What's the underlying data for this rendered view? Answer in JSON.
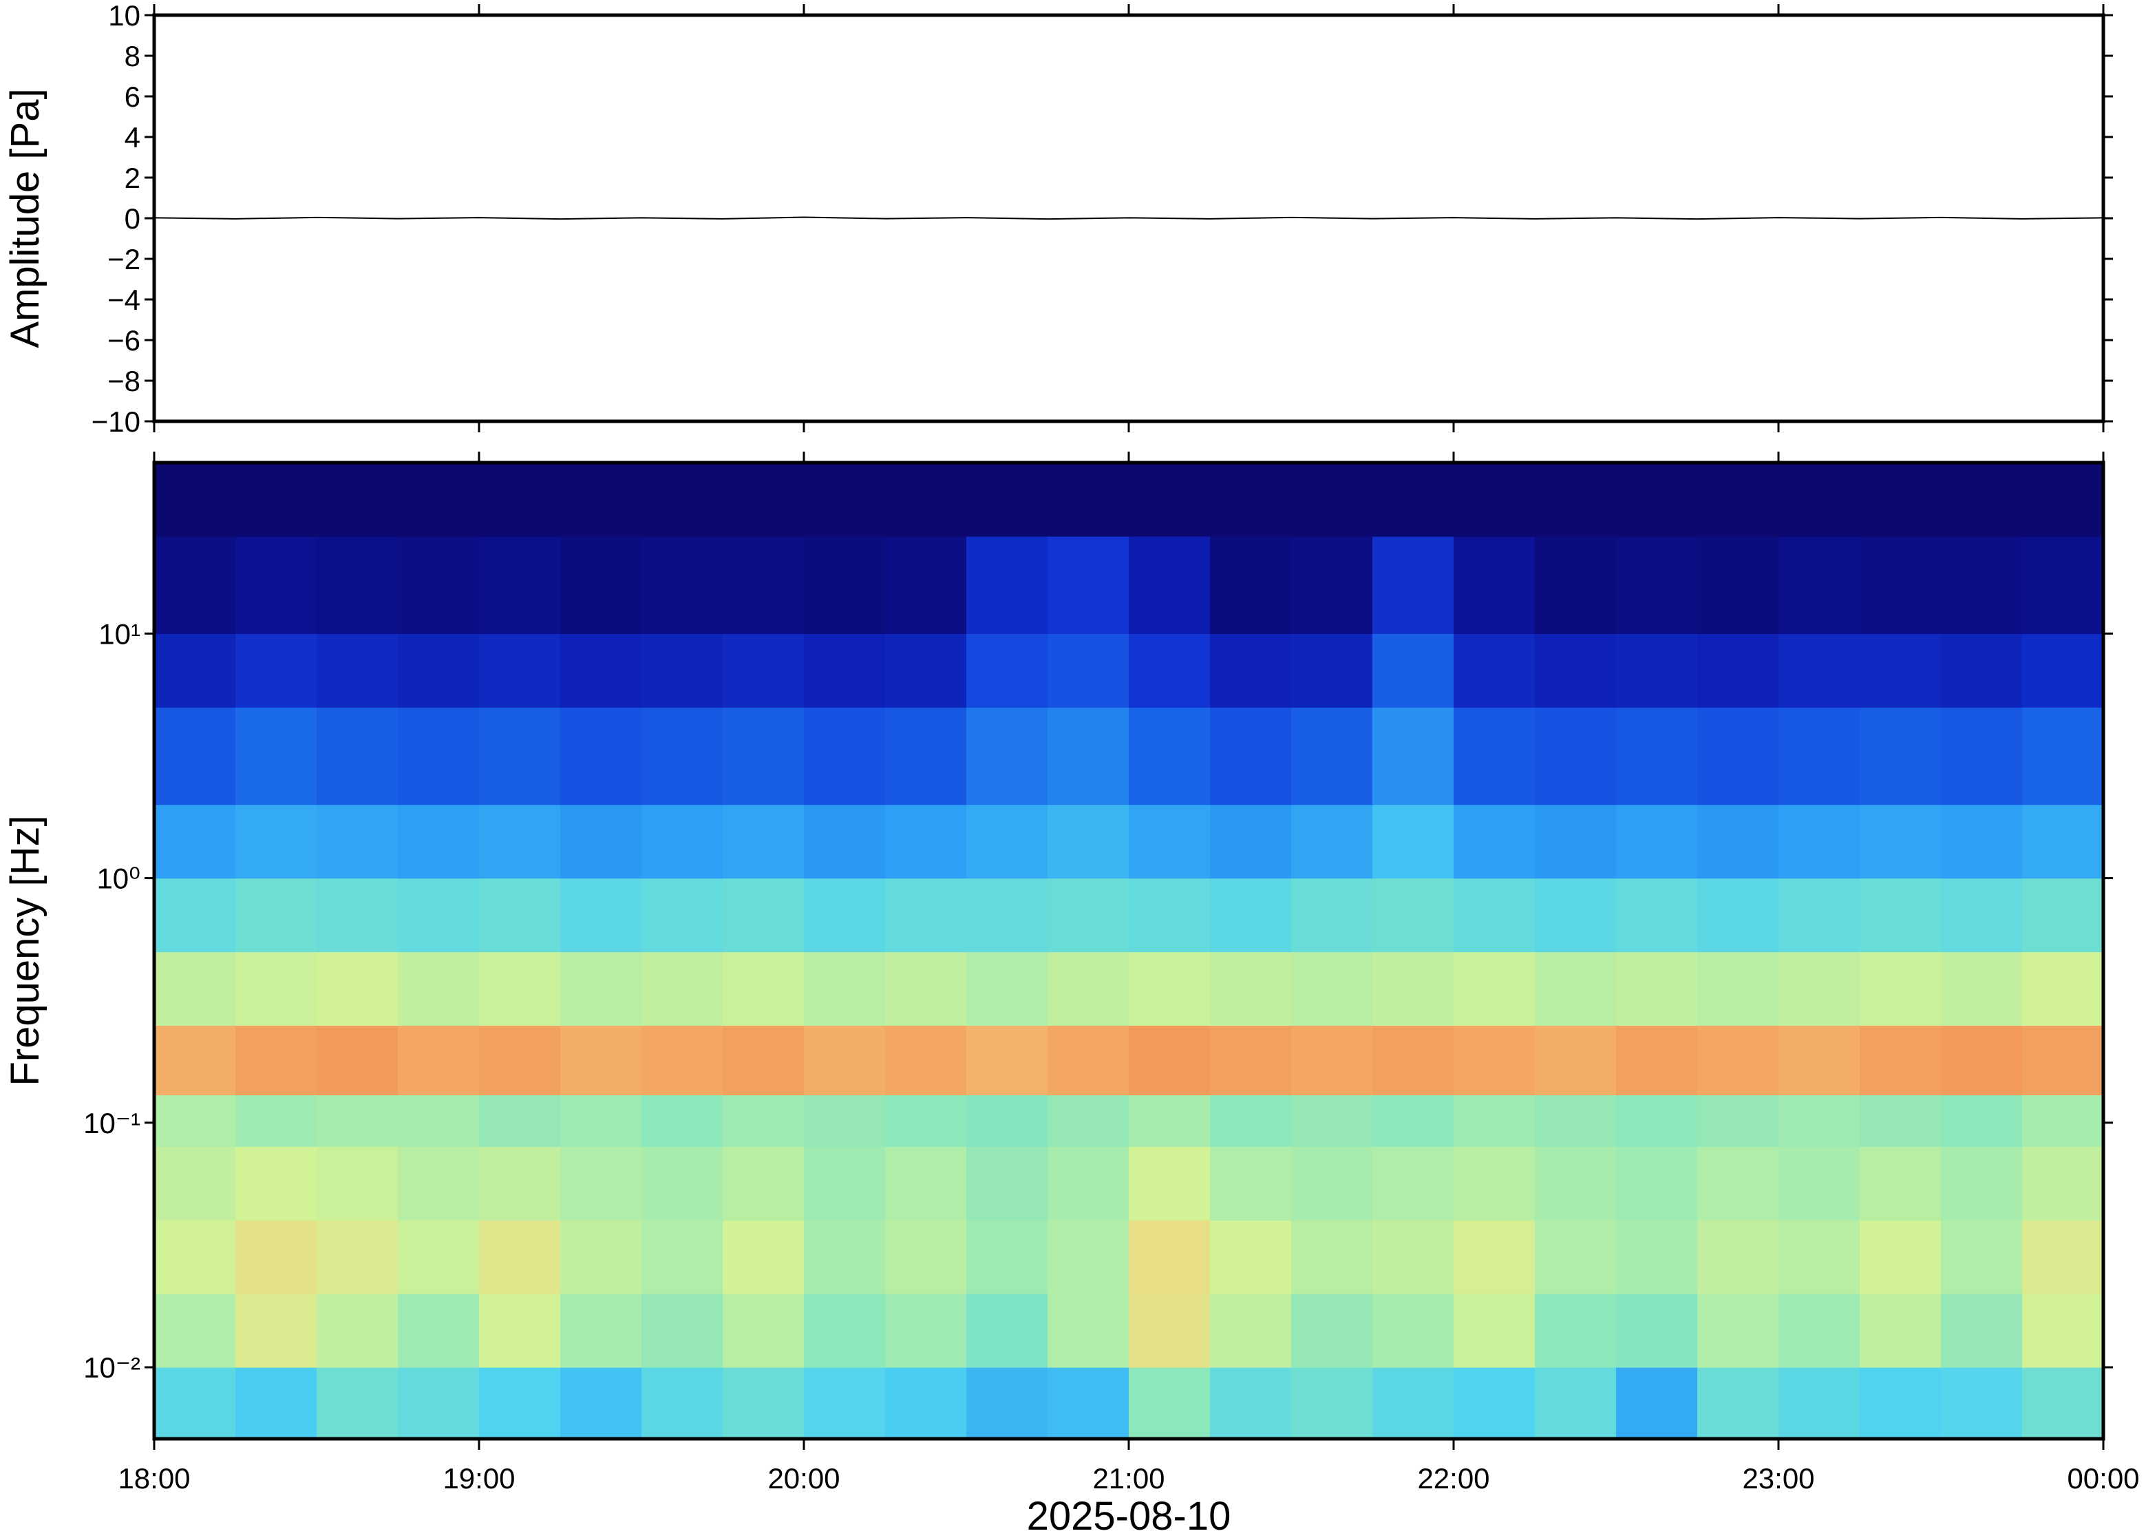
{
  "chart_data": [
    {
      "type": "line",
      "ylabel": "Amplitude [Pa]",
      "xlim": [
        18,
        24
      ],
      "xticks": [
        18,
        19,
        20,
        21,
        22,
        23,
        24
      ],
      "ylim": [
        -10,
        10
      ],
      "yticks": [
        {
          "value": 10,
          "label": "10"
        },
        {
          "value": 8,
          "label": "8"
        },
        {
          "value": 6,
          "label": "6"
        },
        {
          "value": 4,
          "label": "4"
        },
        {
          "value": 2,
          "label": "2"
        },
        {
          "value": 0,
          "label": "0"
        },
        {
          "value": -2,
          "label": "−2"
        },
        {
          "value": -4,
          "label": "−4"
        },
        {
          "value": -6,
          "label": "−6"
        },
        {
          "value": -8,
          "label": "−8"
        },
        {
          "value": -10,
          "label": "−10"
        }
      ],
      "color": "#000000",
      "x": [
        18,
        18.25,
        18.5,
        18.75,
        19,
        19.25,
        19.5,
        19.75,
        20,
        20.25,
        20.5,
        20.75,
        21,
        21.25,
        21.5,
        21.75,
        22,
        22.25,
        22.5,
        22.75,
        23,
        23.25,
        23.5,
        23.75,
        24
      ],
      "values": [
        0.02,
        -0.03,
        0.04,
        -0.02,
        0.03,
        -0.04,
        0.02,
        -0.03,
        0.05,
        -0.02,
        0.03,
        -0.04,
        0.02,
        -0.03,
        0.04,
        -0.02,
        0.03,
        -0.03,
        0.02,
        -0.04,
        0.03,
        -0.02,
        0.04,
        -0.03,
        0.02
      ]
    },
    {
      "type": "heatmap",
      "ylabel": "Frequency [Hz]",
      "xlabel": "2025-08-10",
      "xlim": [
        18,
        24
      ],
      "xticks": [
        {
          "value": 18,
          "label": "18:00"
        },
        {
          "value": 19,
          "label": "19:00"
        },
        {
          "value": 20,
          "label": "20:00"
        },
        {
          "value": 21,
          "label": "21:00"
        },
        {
          "value": 22,
          "label": "22:00"
        },
        {
          "value": 23,
          "label": "23:00"
        },
        {
          "value": 24,
          "label": "00:00"
        }
      ],
      "yscale": "log",
      "ylim": [
        0.0051,
        50
      ],
      "yticks": [
        {
          "value": 0.01,
          "label": "10⁻²"
        },
        {
          "value": 0.1,
          "label": "10⁻¹"
        },
        {
          "value": 1,
          "label": "10⁰"
        },
        {
          "value": 10,
          "label": "10¹"
        }
      ],
      "colormap": [
        "#0b0870",
        "#0c18a8",
        "#1238d8",
        "#1a68ea",
        "#2ea0f4",
        "#4cd2f2",
        "#86e6be",
        "#d2f296",
        "#f6d07a",
        "#f29a5c"
      ],
      "xbins": [
        18,
        18.25,
        18.5,
        18.75,
        19,
        19.25,
        19.5,
        19.75,
        20,
        20.25,
        20.5,
        20.75,
        21,
        21.25,
        21.5,
        21.75,
        22,
        22.25,
        22.5,
        22.75,
        23,
        23.25,
        23.5,
        23.75,
        24
      ],
      "ybins": [
        0.0051,
        0.01,
        0.02,
        0.04,
        0.08,
        0.13,
        0.25,
        0.5,
        1,
        2,
        5,
        10,
        25,
        50
      ],
      "z": [
        [
          4.5,
          4.2,
          4.8,
          4.6,
          4.3,
          4.0,
          4.5,
          4.7,
          4.4,
          4.2,
          3.8,
          3.9,
          5.2,
          4.6,
          4.8,
          4.5,
          4.3,
          4.6,
          3.6,
          4.7,
          4.5,
          4.3,
          4.4,
          4.8
        ],
        [
          5.6,
          6.2,
          5.8,
          5.4,
          6.0,
          5.5,
          5.3,
          5.7,
          5.2,
          5.4,
          5.0,
          5.6,
          6.4,
          5.8,
          5.3,
          5.5,
          5.9,
          5.2,
          5.1,
          5.6,
          5.4,
          5.8,
          5.3,
          6.0
        ],
        [
          6.0,
          6.4,
          6.2,
          5.9,
          6.3,
          5.8,
          5.6,
          6.0,
          5.5,
          5.7,
          5.4,
          5.6,
          6.5,
          6.0,
          5.7,
          5.8,
          6.1,
          5.6,
          5.5,
          5.8,
          5.7,
          6.0,
          5.6,
          6.2
        ],
        [
          5.8,
          6.0,
          5.9,
          5.7,
          5.8,
          5.6,
          5.5,
          5.7,
          5.4,
          5.6,
          5.3,
          5.5,
          6.0,
          5.6,
          5.5,
          5.6,
          5.7,
          5.5,
          5.4,
          5.6,
          5.5,
          5.7,
          5.5,
          5.8
        ],
        [
          5.6,
          5.4,
          5.5,
          5.5,
          5.3,
          5.4,
          5.2,
          5.4,
          5.3,
          5.2,
          5.1,
          5.3,
          5.5,
          5.2,
          5.3,
          5.2,
          5.4,
          5.3,
          5.2,
          5.3,
          5.4,
          5.3,
          5.2,
          5.5
        ],
        [
          7.4,
          7.6,
          7.7,
          7.5,
          7.6,
          7.4,
          7.5,
          7.6,
          7.4,
          7.5,
          7.3,
          7.5,
          7.7,
          7.6,
          7.5,
          7.6,
          7.5,
          7.4,
          7.6,
          7.5,
          7.4,
          7.6,
          7.7,
          7.6
        ],
        [
          5.8,
          5.9,
          6.0,
          5.8,
          5.9,
          5.7,
          5.8,
          5.9,
          5.7,
          5.8,
          5.6,
          5.8,
          5.9,
          5.8,
          5.7,
          5.8,
          5.9,
          5.7,
          5.8,
          5.7,
          5.8,
          5.9,
          5.8,
          6.0
        ],
        [
          4.6,
          4.8,
          4.7,
          4.6,
          4.7,
          4.5,
          4.6,
          4.7,
          4.5,
          4.6,
          4.6,
          4.7,
          4.6,
          4.5,
          4.7,
          4.8,
          4.6,
          4.5,
          4.6,
          4.5,
          4.6,
          4.7,
          4.6,
          4.8
        ],
        [
          3.4,
          3.6,
          3.5,
          3.4,
          3.5,
          3.3,
          3.4,
          3.5,
          3.3,
          3.4,
          3.6,
          3.8,
          3.5,
          3.3,
          3.5,
          4.0,
          3.4,
          3.3,
          3.4,
          3.3,
          3.4,
          3.5,
          3.4,
          3.6
        ],
        [
          2.3,
          2.6,
          2.4,
          2.3,
          2.4,
          2.2,
          2.3,
          2.4,
          2.2,
          2.3,
          2.8,
          3.0,
          2.5,
          2.2,
          2.4,
          3.2,
          2.3,
          2.2,
          2.3,
          2.2,
          2.3,
          2.4,
          2.3,
          2.5
        ],
        [
          1.2,
          1.5,
          1.3,
          1.2,
          1.3,
          1.1,
          1.2,
          1.3,
          1.1,
          1.2,
          2.0,
          2.2,
          1.6,
          1.1,
          1.2,
          2.4,
          1.3,
          1.1,
          1.2,
          1.1,
          1.3,
          1.3,
          1.2,
          1.4
        ],
        [
          0.3,
          0.5,
          0.4,
          0.3,
          0.4,
          0.2,
          0.3,
          0.3,
          0.2,
          0.3,
          1.4,
          1.6,
          1.0,
          0.2,
          0.3,
          1.5,
          0.6,
          0.2,
          0.3,
          0.2,
          0.4,
          0.3,
          0.3,
          0.4
        ],
        [
          0,
          0,
          0,
          0,
          0,
          0,
          0,
          0,
          0,
          0,
          0,
          0,
          0,
          0,
          0,
          0,
          0,
          0,
          0,
          0,
          0,
          0,
          0,
          0
        ]
      ]
    }
  ]
}
